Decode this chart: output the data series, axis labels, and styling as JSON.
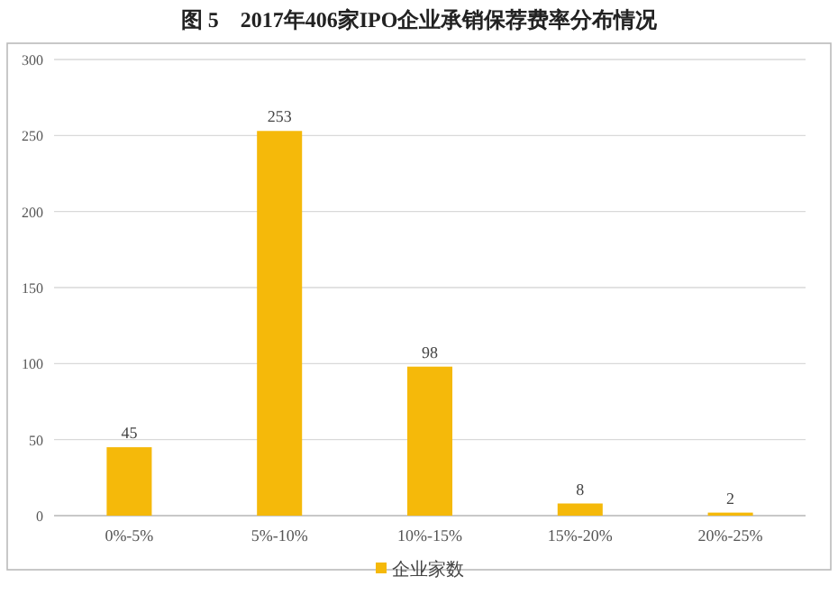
{
  "chart_data": {
    "type": "bar",
    "title": "图 5　2017年406家IPO企业承销保荐费率分布情况",
    "categories": [
      "0%-5%",
      "5%-10%",
      "10%-15%",
      "15%-20%",
      "20%-25%"
    ],
    "series": [
      {
        "name": "企业家数",
        "color": "#f5b90a",
        "values": [
          45,
          253,
          98,
          8,
          2
        ]
      }
    ],
    "ylim": [
      0,
      300
    ],
    "yticks": [
      0,
      50,
      100,
      150,
      200,
      250,
      300
    ],
    "grid": "y",
    "legend": "bottom",
    "data_labels": true
  }
}
